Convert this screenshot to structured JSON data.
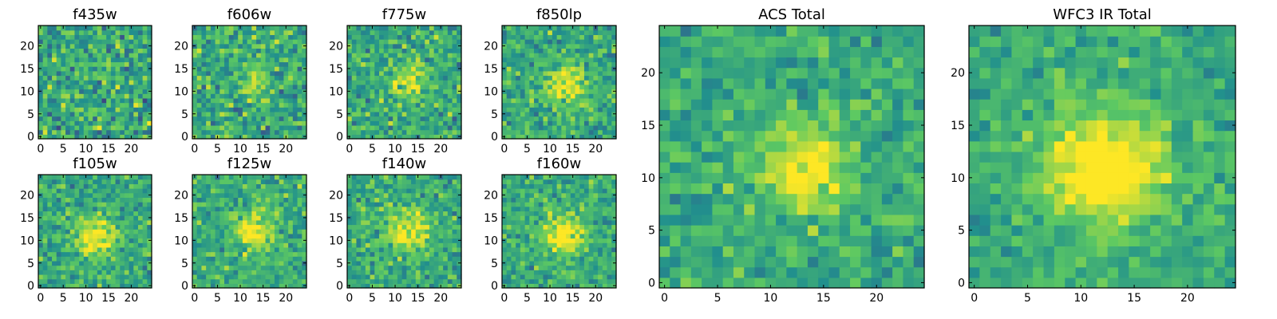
{
  "chart_data": [
    {
      "type": "heatmap",
      "title": "f435w",
      "xticks": [
        "0",
        "5",
        "10",
        "15",
        "20"
      ],
      "yticks": [
        "0",
        "5",
        "10",
        "15",
        "20"
      ],
      "xlim": [
        -0.5,
        24.5
      ],
      "ylim": [
        -0.5,
        24.5
      ],
      "grid_size": 25,
      "peak": {
        "x": 12,
        "y": 11
      },
      "source_strength": 0.0,
      "source_width": 4,
      "noise_level": 0.95
    },
    {
      "type": "heatmap",
      "title": "f606w",
      "xticks": [
        "0",
        "5",
        "10",
        "15",
        "20"
      ],
      "yticks": [
        "0",
        "5",
        "10",
        "15",
        "20"
      ],
      "xlim": [
        -0.5,
        24.5
      ],
      "ylim": [
        -0.5,
        24.5
      ],
      "grid_size": 25,
      "peak": {
        "x": 13,
        "y": 12
      },
      "source_strength": 0.45,
      "source_width": 2.5,
      "noise_level": 0.85
    },
    {
      "type": "heatmap",
      "title": "f775w",
      "xticks": [
        "0",
        "5",
        "10",
        "15",
        "20"
      ],
      "yticks": [
        "0",
        "5",
        "10",
        "15",
        "20"
      ],
      "xlim": [
        -0.5,
        24.5
      ],
      "ylim": [
        -0.5,
        24.5
      ],
      "grid_size": 25,
      "peak": {
        "x": 13,
        "y": 12
      },
      "source_strength": 0.55,
      "source_width": 2.8,
      "noise_level": 0.8
    },
    {
      "type": "heatmap",
      "title": "f850lp",
      "xticks": [
        "0",
        "5",
        "10",
        "15",
        "20"
      ],
      "yticks": [
        "0",
        "5",
        "10",
        "15",
        "20"
      ],
      "xlim": [
        -0.5,
        24.5
      ],
      "ylim": [
        -0.5,
        24.5
      ],
      "grid_size": 25,
      "peak": {
        "x": 13,
        "y": 11
      },
      "source_strength": 0.7,
      "source_width": 2.8,
      "noise_level": 0.75
    },
    {
      "type": "heatmap",
      "title": "f105w",
      "xticks": [
        "0",
        "5",
        "10",
        "15",
        "20"
      ],
      "yticks": [
        "0",
        "5",
        "10",
        "15",
        "20"
      ],
      "xlim": [
        -0.5,
        24.5
      ],
      "ylim": [
        -0.5,
        24.5
      ],
      "grid_size": 25,
      "peak": {
        "x": 12,
        "y": 11
      },
      "source_strength": 0.75,
      "source_width": 3.2,
      "noise_level": 0.7
    },
    {
      "type": "heatmap",
      "title": "f125w",
      "xticks": [
        "0",
        "5",
        "10",
        "15",
        "20"
      ],
      "yticks": [
        "0",
        "5",
        "10",
        "15",
        "20"
      ],
      "xlim": [
        -0.5,
        24.5
      ],
      "ylim": [
        -0.5,
        24.5
      ],
      "grid_size": 25,
      "peak": {
        "x": 13,
        "y": 12
      },
      "source_strength": 0.7,
      "source_width": 3.2,
      "noise_level": 0.7
    },
    {
      "type": "heatmap",
      "title": "f140w",
      "xticks": [
        "0",
        "5",
        "10",
        "15",
        "20"
      ],
      "yticks": [
        "0",
        "5",
        "10",
        "15",
        "20"
      ],
      "xlim": [
        -0.5,
        24.5
      ],
      "ylim": [
        -0.5,
        24.5
      ],
      "grid_size": 25,
      "peak": {
        "x": 13,
        "y": 12
      },
      "source_strength": 0.6,
      "source_width": 3.6,
      "noise_level": 0.7
    },
    {
      "type": "heatmap",
      "title": "f160w",
      "xticks": [
        "0",
        "5",
        "10",
        "15",
        "20"
      ],
      "yticks": [
        "0",
        "5",
        "10",
        "15",
        "20"
      ],
      "xlim": [
        -0.5,
        24.5
      ],
      "ylim": [
        -0.5,
        24.5
      ],
      "grid_size": 25,
      "peak": {
        "x": 13,
        "y": 11
      },
      "source_strength": 0.8,
      "source_width": 3.2,
      "noise_level": 0.7
    },
    {
      "type": "heatmap",
      "title": "ACS Total",
      "xticks": [
        "0",
        "5",
        "10",
        "15",
        "20"
      ],
      "yticks": [
        "0",
        "5",
        "10",
        "15",
        "20"
      ],
      "xlim": [
        -0.5,
        24.5
      ],
      "ylim": [
        -0.5,
        24.5
      ],
      "grid_size": 25,
      "peak": {
        "x": 13,
        "y": 11
      },
      "source_strength": 0.75,
      "source_width": 3.0,
      "noise_level": 0.6
    },
    {
      "type": "heatmap",
      "title": "WFC3 IR Total",
      "xticks": [
        "0",
        "5",
        "10",
        "15",
        "20"
      ],
      "yticks": [
        "0",
        "5",
        "10",
        "15",
        "20"
      ],
      "xlim": [
        -0.5,
        24.5
      ],
      "ylim": [
        -0.5,
        24.5
      ],
      "grid_size": 25,
      "peak": {
        "x": 12,
        "y": 11
      },
      "source_strength": 0.95,
      "source_width": 3.8,
      "noise_level": 0.5
    }
  ],
  "colormap": {
    "name": "viridis",
    "stops": [
      "#440154",
      "#3b528b",
      "#21908d",
      "#5dc962",
      "#fde725"
    ]
  }
}
